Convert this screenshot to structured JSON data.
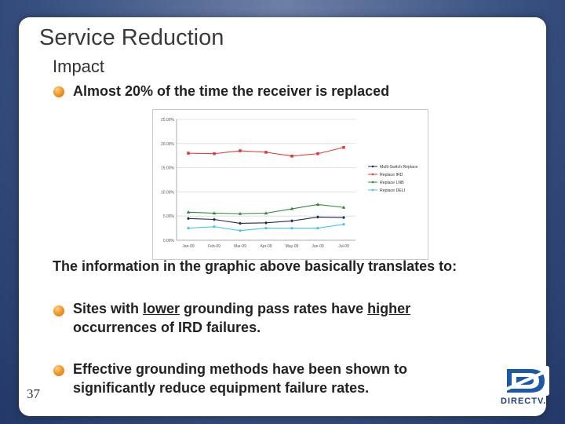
{
  "slide": {
    "title": "Service Reduction",
    "subtitle": "Impact",
    "bullet1": "Almost 20% of the time the receiver is replaced",
    "caption": "The information in the graphic above basically  translates to:",
    "bullet2": {
      "pre": "Sites with ",
      "u1": "lower",
      "mid": " grounding pass rates have ",
      "u2": "higher",
      "line2": "occurrences of IRD failures."
    },
    "bullet3": {
      "line1": "Effective grounding methods have been shown to",
      "line2": "significantly reduce equipment failure rates."
    },
    "page_number": "37",
    "logo_text": "DIRECTV."
  },
  "chart_data": {
    "type": "line",
    "categories": [
      "Jan-09",
      "Feb-09",
      "Mar-09",
      "Apr-09",
      "May-09",
      "Jun-09",
      "Jul-09"
    ],
    "yticks": [
      "0.00%",
      "5.00%",
      "10.00%",
      "15.00%",
      "20.00%",
      "25.00%"
    ],
    "ylim": [
      0,
      25
    ],
    "grid": true,
    "legend_position": "right",
    "series": [
      {
        "name": "Multi-Switch Replace",
        "values": [
          4.5,
          4.3,
          3.5,
          3.6,
          4.0,
          4.8,
          4.7
        ],
        "color": "#1f2a55",
        "marker": "diamond"
      },
      {
        "name": "Replace IRD",
        "values": [
          18.0,
          17.9,
          18.5,
          18.2,
          17.4,
          17.9,
          19.2
        ],
        "color": "#e23b3b",
        "marker": "square"
      },
      {
        "name": "Replace LNB",
        "values": [
          5.8,
          5.6,
          5.5,
          5.6,
          6.5,
          7.4,
          6.8
        ],
        "color": "#2f8a3a",
        "marker": "triangle"
      },
      {
        "name": "Replace DELI",
        "values": [
          2.5,
          2.8,
          2.0,
          2.5,
          2.5,
          2.5,
          3.3
        ],
        "color": "#3ec7e8",
        "marker": "circle"
      }
    ]
  }
}
